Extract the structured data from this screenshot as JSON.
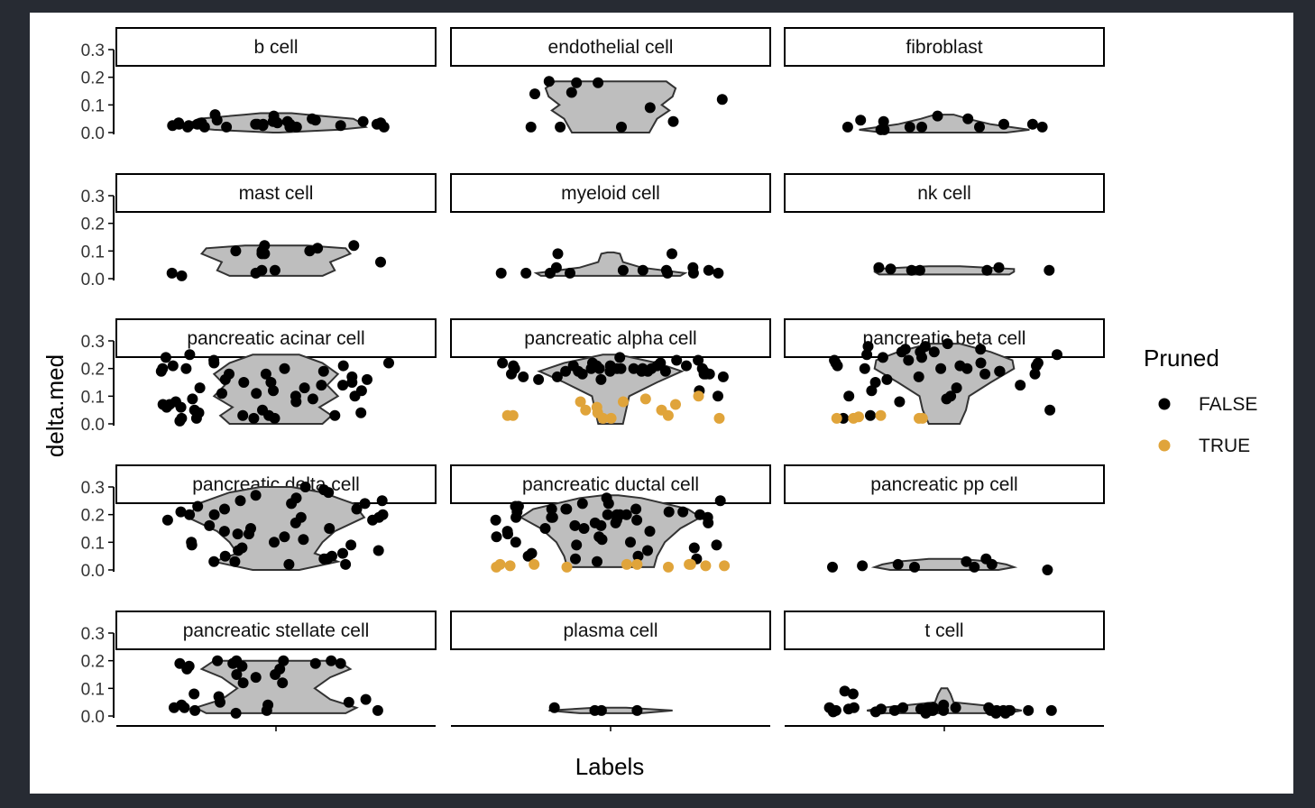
{
  "chart_data": {
    "type": "violin",
    "xlabel": "Labels",
    "ylabel": "delta.med",
    "ylim": [
      0,
      0.3
    ],
    "y_ticks": [
      "0.0",
      "0.1",
      "0.2",
      "0.3"
    ],
    "layout": "facet grid 5 rows x 3 columns",
    "legend": {
      "title": "Pruned",
      "placement": "right",
      "entries": [
        {
          "label": "FALSE",
          "color": "#000000"
        },
        {
          "label": "TRUE",
          "color": "#e0a43a"
        }
      ]
    },
    "violin_fill": "#bebebe",
    "facets": [
      {
        "label": "b cell",
        "violin": [
          [
            0.0,
            0.02
          ],
          [
            0.01,
            0.4
          ],
          [
            0.02,
            0.58
          ],
          [
            0.035,
            0.55
          ],
          [
            0.05,
            0.5
          ],
          [
            0.065,
            0.2
          ],
          [
            0.07,
            0.1
          ]
        ],
        "points": {
          "false": [
            0.06,
            0.03,
            0.02,
            0.045,
            0.025,
            0.035,
            0.03,
            0.04,
            0.02,
            0.03,
            0.02,
            0.025,
            0.05,
            0.035,
            0.04,
            0.065,
            0.045,
            0.03,
            0.02,
            0.04,
            0.035,
            0.025,
            0.03,
            0.02,
            0.025,
            0.03,
            0.035,
            0.02,
            0.03,
            0.04
          ],
          "true": []
        }
      },
      {
        "label": "endothelial cell",
        "violin": [
          [
            0.0,
            0.25
          ],
          [
            0.05,
            0.3
          ],
          [
            0.08,
            0.38
          ],
          [
            0.1,
            0.33
          ],
          [
            0.13,
            0.4
          ],
          [
            0.16,
            0.42
          ],
          [
            0.185,
            0.36
          ]
        ],
        "points": {
          "false": [
            0.09,
            0.02,
            0.14,
            0.12,
            0.18,
            0.185,
            0.02,
            0.145,
            0.02,
            0.04,
            0.18
          ],
          "true": []
        }
      },
      {
        "label": "fibroblast",
        "violin": [
          [
            0.0,
            0.4
          ],
          [
            0.01,
            0.55
          ],
          [
            0.03,
            0.3
          ],
          [
            0.05,
            0.15
          ],
          [
            0.065,
            0.06
          ]
        ],
        "points": {
          "false": [
            0.02,
            0.02,
            0.02,
            0.01,
            0.03,
            0.06,
            0.04,
            0.05,
            0.02,
            0.03,
            0.02,
            0.045,
            0.01
          ],
          "true": []
        }
      },
      {
        "label": "mast cell",
        "violin": [
          [
            0.01,
            0.3
          ],
          [
            0.03,
            0.38
          ],
          [
            0.06,
            0.35
          ],
          [
            0.09,
            0.48
          ],
          [
            0.11,
            0.45
          ],
          [
            0.12,
            0.2
          ]
        ],
        "points": {
          "false": [
            0.12,
            0.01,
            0.02,
            0.02,
            0.11,
            0.1,
            0.06,
            0.1,
            0.03,
            0.03,
            0.09,
            0.12,
            0.09,
            0.1
          ],
          "true": []
        }
      },
      {
        "label": "myeloid cell",
        "violin": [
          [
            0.01,
            0.45
          ],
          [
            0.02,
            0.48
          ],
          [
            0.04,
            0.2
          ],
          [
            0.06,
            0.08
          ],
          [
            0.09,
            0.06
          ],
          [
            0.095,
            0.02
          ]
        ],
        "points": {
          "false": [
            0.04,
            0.02,
            0.03,
            0.02,
            0.09,
            0.09,
            0.04,
            0.02,
            0.03,
            0.02,
            0.02,
            0.03,
            0.03,
            0.02,
            0.02
          ],
          "true": []
        }
      },
      {
        "label": "nk cell",
        "violin": [
          [
            0.015,
            0.42
          ],
          [
            0.025,
            0.45
          ],
          [
            0.035,
            0.45
          ],
          [
            0.045,
            0.1
          ]
        ],
        "points": {
          "false": [
            0.03,
            0.04,
            0.03,
            0.03,
            0.04,
            0.035,
            0.03
          ],
          "true": []
        }
      },
      {
        "label": "pancreatic acinar cell",
        "violin": [
          [
            0.0,
            0.3
          ],
          [
            0.03,
            0.36
          ],
          [
            0.06,
            0.28
          ],
          [
            0.1,
            0.4
          ],
          [
            0.14,
            0.33
          ],
          [
            0.18,
            0.4
          ],
          [
            0.22,
            0.3
          ],
          [
            0.25,
            0.15
          ]
        ],
        "points": {
          "false": [
            0.2,
            0.15,
            0.1,
            0.05,
            0.02,
            0.22,
            0.18,
            0.12,
            0.08,
            0.03,
            0.25,
            0.21,
            0.16,
            0.11,
            0.06,
            0.02,
            0.19,
            0.14,
            0.09,
            0.04,
            0.23,
            0.17,
            0.13,
            0.07,
            0.01,
            0.24,
            0.2,
            0.15,
            0.1,
            0.05,
            0.02,
            0.21,
            0.16,
            0.12,
            0.08,
            0.03,
            0.22,
            0.18,
            0.14,
            0.09,
            0.04,
            0.19,
            0.13,
            0.06,
            0.02,
            0.2,
            0.15,
            0.11,
            0.07,
            0.03
          ],
          "true": []
        }
      },
      {
        "label": "pancreatic alpha cell",
        "violin": [
          [
            0.0,
            0.08
          ],
          [
            0.05,
            0.1
          ],
          [
            0.1,
            0.12
          ],
          [
            0.15,
            0.3
          ],
          [
            0.19,
            0.46
          ],
          [
            0.22,
            0.3
          ],
          [
            0.25,
            0.05
          ]
        ],
        "points": {
          "false": [
            0.2,
            0.19,
            0.21,
            0.18,
            0.22,
            0.2,
            0.17,
            0.19,
            0.21,
            0.23,
            0.2,
            0.18,
            0.16,
            0.19,
            0.22,
            0.2,
            0.21,
            0.18,
            0.24,
            0.19,
            0.2,
            0.22,
            0.17,
            0.2,
            0.19,
            0.21,
            0.18,
            0.2,
            0.16,
            0.1,
            0.12,
            0.2,
            0.19,
            0.21,
            0.23,
            0.18,
            0.2,
            0.17,
            0.19,
            0.21
          ],
          "true": [
            0.06,
            0.03,
            0.02,
            0.08,
            0.09,
            0.05,
            0.03,
            0.07,
            0.02,
            0.04,
            0.1,
            0.05,
            0.03,
            0.08,
            0.02
          ]
        }
      },
      {
        "label": "pancreatic beta cell",
        "violin": [
          [
            0.0,
            0.1
          ],
          [
            0.05,
            0.14
          ],
          [
            0.1,
            0.16
          ],
          [
            0.15,
            0.3
          ],
          [
            0.2,
            0.45
          ],
          [
            0.23,
            0.44
          ],
          [
            0.26,
            0.3
          ],
          [
            0.29,
            0.1
          ]
        ],
        "points": {
          "false": [
            0.25,
            0.22,
            0.2,
            0.18,
            0.28,
            0.15,
            0.1,
            0.26,
            0.23,
            0.05,
            0.29,
            0.21,
            0.17,
            0.12,
            0.27,
            0.24,
            0.19,
            0.08,
            0.22,
            0.2,
            0.26,
            0.14,
            0.03,
            0.23,
            0.28,
            0.18,
            0.21,
            0.1,
            0.25,
            0.2,
            0.16,
            0.24,
            0.09,
            0.27,
            0.22,
            0.02,
            0.19,
            0.26,
            0.13,
            0.21
          ],
          "true": [
            0.02,
            0.02,
            0.03,
            0.02,
            0.02,
            0.025
          ]
        }
      },
      {
        "label": "pancreatic delta cell",
        "violin": [
          [
            0.0,
            0.15
          ],
          [
            0.03,
            0.4
          ],
          [
            0.06,
            0.25
          ],
          [
            0.1,
            0.3
          ],
          [
            0.14,
            0.38
          ],
          [
            0.19,
            0.57
          ],
          [
            0.24,
            0.5
          ],
          [
            0.28,
            0.3
          ],
          [
            0.3,
            0.1
          ]
        ],
        "points": {
          "false": [
            0.28,
            0.22,
            0.18,
            0.12,
            0.05,
            0.25,
            0.2,
            0.15,
            0.1,
            0.03,
            0.3,
            0.24,
            0.19,
            0.13,
            0.07,
            0.02,
            0.27,
            0.21,
            0.16,
            0.09,
            0.04,
            0.26,
            0.2,
            0.14,
            0.08,
            0.03,
            0.23,
            0.18,
            0.11,
            0.06,
            0.29,
            0.22,
            0.17,
            0.1,
            0.04,
            0.25,
            0.19,
            0.13,
            0.07,
            0.02,
            0.24,
            0.2,
            0.15,
            0.09,
            0.05
          ],
          "true": []
        }
      },
      {
        "label": "pancreatic ductal cell",
        "violin": [
          [
            0.01,
            0.28
          ],
          [
            0.05,
            0.3
          ],
          [
            0.1,
            0.35
          ],
          [
            0.15,
            0.45
          ],
          [
            0.19,
            0.58
          ],
          [
            0.22,
            0.5
          ],
          [
            0.26,
            0.2
          ],
          [
            0.27,
            0.05
          ]
        ],
        "points": {
          "false": [
            0.2,
            0.18,
            0.22,
            0.15,
            0.1,
            0.05,
            0.24,
            0.19,
            0.21,
            0.17,
            0.12,
            0.08,
            0.03,
            0.23,
            0.2,
            0.16,
            0.19,
            0.22,
            0.14,
            0.09,
            0.04,
            0.25,
            0.21,
            0.18,
            0.2,
            0.13,
            0.11,
            0.06,
            0.26,
            0.22,
            0.19,
            0.17,
            0.2,
            0.15,
            0.1,
            0.07,
            0.24,
            0.21,
            0.18,
            0.2,
            0.16,
            0.12,
            0.05,
            0.23,
            0.19,
            0.22,
            0.17,
            0.14,
            0.09,
            0.04
          ],
          "true": [
            0.02,
            0.01,
            0.02,
            0.015,
            0.02,
            0.01,
            0.02,
            0.015,
            0.02,
            0.01,
            0.02,
            0.015
          ]
        }
      },
      {
        "label": "pancreatic pp cell",
        "violin": [
          [
            0.0,
            0.35
          ],
          [
            0.01,
            0.45
          ],
          [
            0.02,
            0.4
          ],
          [
            0.03,
            0.3
          ],
          [
            0.04,
            0.1
          ]
        ],
        "points": {
          "false": [
            0.01,
            0.01,
            0.02,
            0.0,
            0.03,
            0.015,
            0.04,
            0.02,
            0.01
          ],
          "true": []
        }
      },
      {
        "label": "pancreatic stellate cell",
        "violin": [
          [
            0.01,
            0.45
          ],
          [
            0.03,
            0.52
          ],
          [
            0.06,
            0.35
          ],
          [
            0.1,
            0.25
          ],
          [
            0.14,
            0.35
          ],
          [
            0.17,
            0.48
          ],
          [
            0.2,
            0.4
          ]
        ],
        "points": {
          "false": [
            0.2,
            0.18,
            0.01,
            0.03,
            0.05,
            0.15,
            0.2,
            0.12,
            0.02,
            0.04,
            0.18,
            0.19,
            0.08,
            0.02,
            0.15,
            0.17,
            0.2,
            0.03,
            0.14,
            0.19,
            0.05,
            0.02,
            0.17,
            0.06,
            0.19,
            0.12,
            0.2,
            0.04,
            0.07,
            0.19
          ],
          "true": []
        }
      },
      {
        "label": "plasma cell",
        "violin": [
          [
            0.01,
            0.2
          ],
          [
            0.02,
            0.4
          ],
          [
            0.03,
            0.1
          ]
        ],
        "points": {
          "false": [
            0.03,
            0.02,
            0.02,
            0.02
          ],
          "true": []
        }
      },
      {
        "label": "t cell",
        "violin": [
          [
            0.01,
            0.4
          ],
          [
            0.02,
            0.5
          ],
          [
            0.03,
            0.4
          ],
          [
            0.05,
            0.06
          ],
          [
            0.08,
            0.04
          ],
          [
            0.1,
            0.02
          ]
        ],
        "points": {
          "false": [
            0.02,
            0.03,
            0.02,
            0.01,
            0.025,
            0.02,
            0.03,
            0.015,
            0.02,
            0.08,
            0.03,
            0.02,
            0.09,
            0.025,
            0.02,
            0.03,
            0.02,
            0.01,
            0.03,
            0.02,
            0.04,
            0.02,
            0.03,
            0.015,
            0.02,
            0.03,
            0.02,
            0.01,
            0.025,
            0.02
          ],
          "true": []
        }
      }
    ]
  }
}
